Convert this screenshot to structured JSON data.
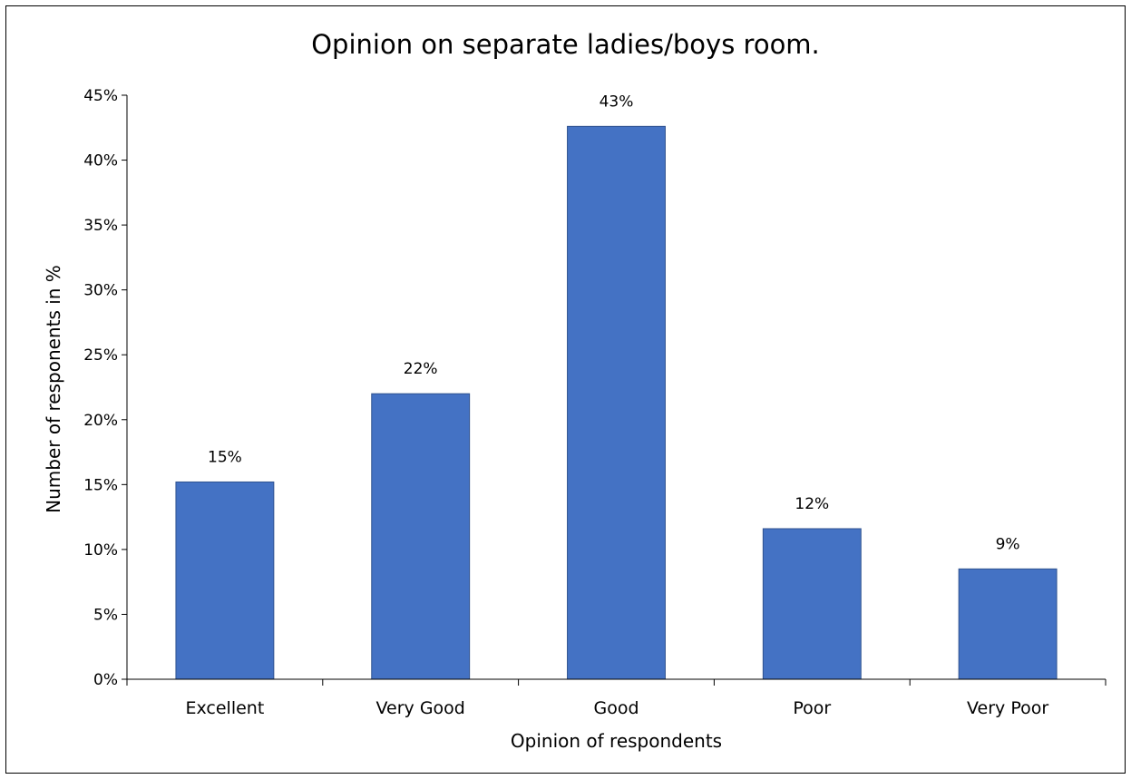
{
  "chart_data": {
    "type": "bar",
    "title": "Opinion on separate ladies/boys room.",
    "xlabel": "Opinion of respondents",
    "ylabel": "Number of responents in %",
    "categories": [
      "Excellent",
      "Very Good",
      "Good",
      "Poor",
      "Very Poor"
    ],
    "values": [
      15.2,
      22.0,
      42.6,
      11.6,
      8.5
    ],
    "data_labels": [
      "15%",
      "22%",
      "43%",
      "12%",
      "9%"
    ],
    "ylim": [
      0,
      45
    ],
    "yticks": [
      0,
      5,
      10,
      15,
      20,
      25,
      30,
      35,
      40,
      45
    ],
    "ytick_labels": [
      "0%",
      "5%",
      "10%",
      "15%",
      "20%",
      "25%",
      "30%",
      "35%",
      "40%",
      "45%"
    ],
    "grid": false,
    "legend": "none",
    "colors": {
      "bar": "#4472c4",
      "bar_edge": "#2f528f",
      "axis": "#000000"
    }
  }
}
